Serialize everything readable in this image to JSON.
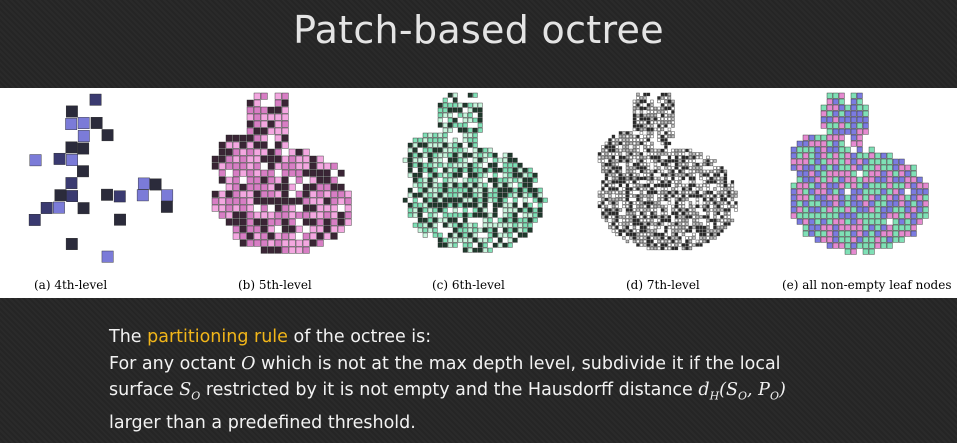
{
  "slide": {
    "title": "Patch-based octree"
  },
  "figure": {
    "panels": [
      {
        "id": "a",
        "caption": "(a) 4th-level",
        "colors": [
          "#3a3a70",
          "#7b7bd8",
          "#2b2b3b"
        ]
      },
      {
        "id": "b",
        "caption": "(b) 5th-level",
        "colors": [
          "#d77ec4",
          "#3a2535",
          "#f3a7e0"
        ]
      },
      {
        "id": "c",
        "caption": "(c) 6th-level",
        "colors": [
          "#7fe0b6",
          "#1f3a2c",
          "#c7f5dd"
        ]
      },
      {
        "id": "d",
        "caption": "(d) 7th-level",
        "colors": [
          "#ffffff",
          "#2a2a2a",
          "#bdbdbd"
        ]
      },
      {
        "id": "e",
        "caption": "(e) all non-empty leaf nodes",
        "colors": [
          "#e58ad0",
          "#7fe0b6",
          "#7b7be0"
        ]
      }
    ]
  },
  "body": {
    "line1_pre": "The ",
    "line1_highlight": "partitioning rule",
    "line1_post": " of the octree is:",
    "line2_pre": "For any octant ",
    "line2_var": "O",
    "line2_post": " which is not at the max depth level, subdivide it if the local",
    "line3_pre": "surface ",
    "line3_S": "S",
    "line3_Ssub": "O",
    "line3_mid": " restricted by it is not empty and the Hausdorff distance ",
    "line3_d": "d",
    "line3_dsub": "H",
    "line3_args": "(S",
    "line3_args_sub1": "O",
    "line3_args_mid": ", P",
    "line3_args_sub2": "O",
    "line3_args_end": ")",
    "line4": "larger than a predefined threshold."
  },
  "colors": {
    "background": "#262626",
    "title": "#e4e4e4",
    "highlight": "#f2b619",
    "text": "#f2f2f2"
  }
}
